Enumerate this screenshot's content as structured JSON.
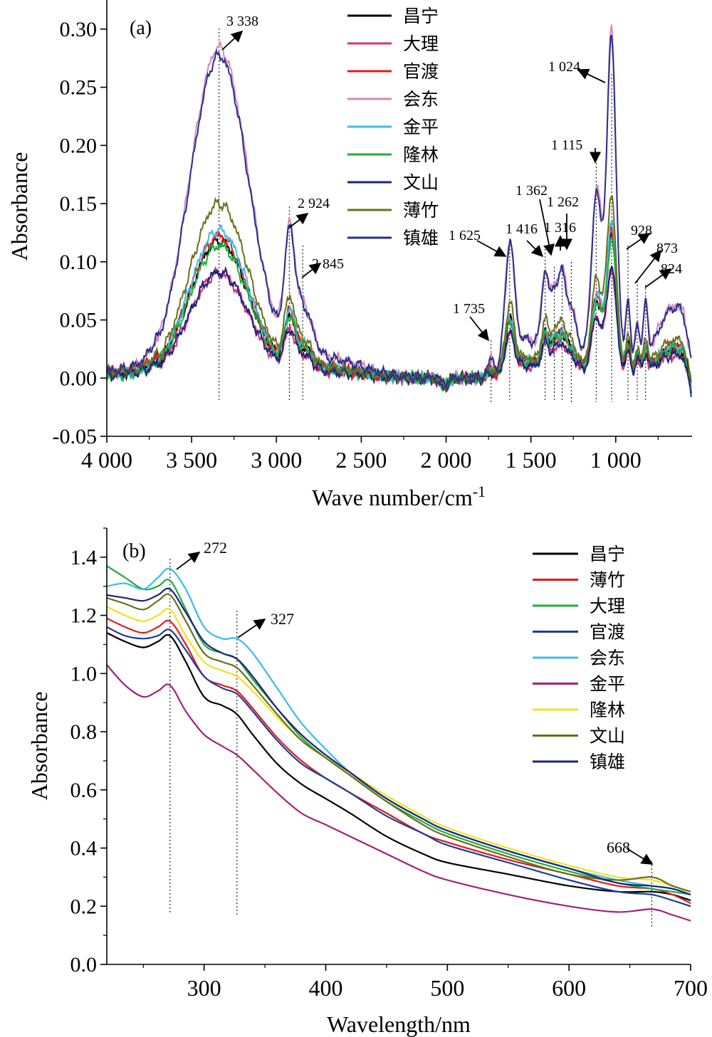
{
  "chart_data": [
    {
      "type": "line",
      "panel_label": "(a)",
      "xlabel": "Wave number/cm",
      "xlabel_sup": "-1",
      "ylabel": "Absorbance",
      "xlim": [
        4000,
        550
      ],
      "ylim": [
        -0.05,
        0.325
      ],
      "x_reversed": true,
      "grid": false,
      "legend_position": "top-center",
      "xticks": [
        4000,
        3500,
        3000,
        2500,
        2000,
        1500,
        1000
      ],
      "xtick_labels": [
        "4 000",
        "3 500",
        "3 000",
        "2 500",
        "2 000",
        "1 500",
        "1 000"
      ],
      "yticks": [
        -0.05,
        0,
        0.05,
        0.1,
        0.15,
        0.2,
        0.25,
        0.3
      ],
      "ytick_labels": [
        "-0.05",
        "0.00",
        "0.05",
        "0.10",
        "0.15",
        "0.20",
        "0.25",
        "0.30"
      ],
      "series": [
        {
          "name": "昌宁",
          "color": "#000000",
          "scale": 0.118
        },
        {
          "name": "大理",
          "color": "#d6337a",
          "scale": 0.09
        },
        {
          "name": "官渡",
          "color": "#e31a1c",
          "scale": 0.122
        },
        {
          "name": "会东",
          "color": "#d48ab6",
          "scale": 0.284
        },
        {
          "name": "金平",
          "color": "#3cbde6",
          "scale": 0.127
        },
        {
          "name": "隆林",
          "color": "#1fad3c",
          "scale": 0.114
        },
        {
          "name": "文山",
          "color": "#1a237e",
          "scale": 0.091
        },
        {
          "name": "薄竹",
          "color": "#6b7019",
          "scale": 0.15
        },
        {
          "name": "镇雄",
          "color": "#2b2f8f",
          "scale": 0.277
        }
      ],
      "peaks": [
        {
          "label": "3 338",
          "x": 3338
        },
        {
          "label": "2 924",
          "x": 2924
        },
        {
          "label": "2 845",
          "x": 2845
        },
        {
          "label": "1 735",
          "x": 1735
        },
        {
          "label": "1 625",
          "x": 1625
        },
        {
          "label": "1 416",
          "x": 1416
        },
        {
          "label": "1 362",
          "x": 1362
        },
        {
          "label": "1 316",
          "x": 1316
        },
        {
          "label": "1 262",
          "x": 1262
        },
        {
          "label": "1 115",
          "x": 1115
        },
        {
          "label": "1 024",
          "x": 1024
        },
        {
          "label": "928",
          "x": 928
        },
        {
          "label": "873",
          "x": 873
        },
        {
          "label": "824",
          "x": 824
        }
      ]
    },
    {
      "type": "line",
      "panel_label": "(b)",
      "xlabel": "Wavelength/nm",
      "ylabel": "Absorbance",
      "xlim": [
        220,
        700
      ],
      "ylim": [
        0,
        1.5
      ],
      "grid": false,
      "legend_position": "top-right",
      "xticks": [
        300,
        400,
        500,
        600,
        700
      ],
      "xtick_labels": [
        "300",
        "400",
        "500",
        "600",
        "700"
      ],
      "yticks": [
        0,
        0.2,
        0.4,
        0.6,
        0.8,
        1.0,
        1.2,
        1.4
      ],
      "ytick_labels": [
        "0.0",
        "0.2",
        "0.4",
        "0.6",
        "0.8",
        "1.0",
        "1.2",
        "1.4"
      ],
      "x": [
        220,
        235,
        250,
        262,
        272,
        285,
        300,
        315,
        327,
        340,
        360,
        380,
        400,
        420,
        450,
        480,
        500,
        550,
        600,
        640,
        668,
        685,
        700
      ],
      "series": [
        {
          "name": "昌宁",
          "color": "#000000",
          "values": [
            1.14,
            1.11,
            1.09,
            1.11,
            1.13,
            1.04,
            0.92,
            0.89,
            0.86,
            0.79,
            0.69,
            0.62,
            0.57,
            0.52,
            0.44,
            0.38,
            0.35,
            0.31,
            0.27,
            0.25,
            0.25,
            0.24,
            0.22
          ]
        },
        {
          "name": "薄竹",
          "color": "#e31a1c",
          "values": [
            1.19,
            1.16,
            1.14,
            1.16,
            1.18,
            1.1,
            0.99,
            0.96,
            0.94,
            0.88,
            0.78,
            0.7,
            0.64,
            0.59,
            0.52,
            0.45,
            0.42,
            0.36,
            0.31,
            0.27,
            0.26,
            0.24,
            0.21
          ]
        },
        {
          "name": "大理",
          "color": "#1fad3c",
          "values": [
            1.37,
            1.33,
            1.29,
            1.3,
            1.32,
            1.22,
            1.1,
            1.07,
            1.05,
            0.98,
            0.88,
            0.78,
            0.71,
            0.65,
            0.56,
            0.49,
            0.45,
            0.38,
            0.32,
            0.28,
            0.26,
            0.25,
            0.24
          ]
        },
        {
          "name": "官渡",
          "color": "#1f3e99",
          "values": [
            1.16,
            1.13,
            1.12,
            1.13,
            1.15,
            1.08,
            0.99,
            0.95,
            0.93,
            0.87,
            0.77,
            0.69,
            0.64,
            0.59,
            0.51,
            0.45,
            0.41,
            0.35,
            0.29,
            0.25,
            0.24,
            0.22,
            0.2
          ]
        },
        {
          "name": "会东",
          "color": "#3cbde6",
          "values": [
            1.3,
            1.31,
            1.29,
            1.33,
            1.36,
            1.29,
            1.16,
            1.12,
            1.12,
            1.07,
            0.95,
            0.83,
            0.74,
            0.66,
            0.57,
            0.5,
            0.46,
            0.39,
            0.33,
            0.29,
            0.27,
            0.26,
            0.24
          ]
        },
        {
          "name": "金平",
          "color": "#a3207e",
          "values": [
            1.03,
            0.96,
            0.92,
            0.94,
            0.96,
            0.87,
            0.79,
            0.75,
            0.72,
            0.67,
            0.59,
            0.52,
            0.48,
            0.44,
            0.38,
            0.32,
            0.29,
            0.24,
            0.2,
            0.18,
            0.19,
            0.17,
            0.15
          ]
        },
        {
          "name": "隆林",
          "color": "#f2e21b",
          "values": [
            1.23,
            1.2,
            1.18,
            1.2,
            1.22,
            1.13,
            1.04,
            1.01,
            0.99,
            0.94,
            0.85,
            0.77,
            0.71,
            0.66,
            0.58,
            0.51,
            0.47,
            0.4,
            0.34,
            0.3,
            0.29,
            0.27,
            0.25
          ]
        },
        {
          "name": "文山",
          "color": "#6b7019",
          "values": [
            1.26,
            1.24,
            1.22,
            1.25,
            1.27,
            1.18,
            1.07,
            1.04,
            1.02,
            0.96,
            0.86,
            0.77,
            0.71,
            0.65,
            0.56,
            0.48,
            0.44,
            0.37,
            0.31,
            0.29,
            0.3,
            0.27,
            0.25
          ]
        },
        {
          "name": "镇雄",
          "color": "#1a237e",
          "values": [
            1.27,
            1.26,
            1.25,
            1.27,
            1.29,
            1.21,
            1.11,
            1.07,
            1.05,
            0.99,
            0.88,
            0.79,
            0.72,
            0.66,
            0.57,
            0.5,
            0.46,
            0.39,
            0.33,
            0.28,
            0.27,
            0.26,
            0.24
          ]
        }
      ],
      "peaks": [
        {
          "label": "272",
          "x": 272
        },
        {
          "label": "327",
          "x": 327
        },
        {
          "label": "668",
          "x": 668
        }
      ]
    }
  ]
}
